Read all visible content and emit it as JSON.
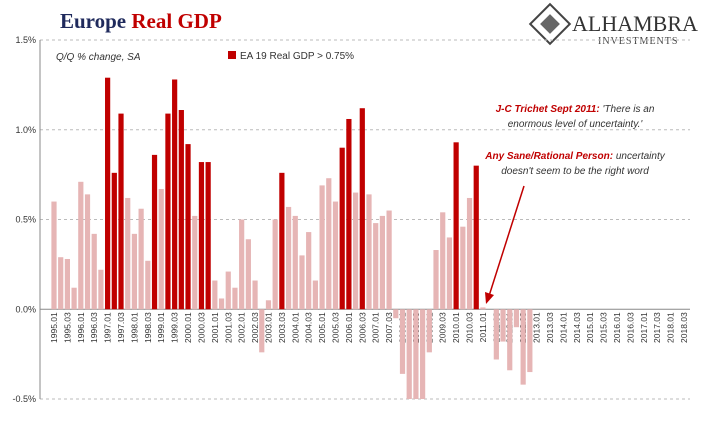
{
  "chart_data": {
    "type": "bar",
    "title": {
      "lead": "Europe",
      "rest": "Real GDP"
    },
    "logo": {
      "name": "ALHAMBRA",
      "tagline": "INVESTMENTS"
    },
    "subtitle": "Q/Q % change, SA",
    "annotations": [
      {
        "speaker": "J-C Trichet Sept 2011:",
        "lines": [
          "'There is an",
          "enormous level of uncertainty.'"
        ]
      },
      {
        "speaker": "Any Sane/Rational Person:",
        "lines": [
          "uncertainty",
          "doesn't seem to be the right word"
        ]
      }
    ],
    "categories": [
      "1995.01",
      null,
      "1995.03",
      null,
      "1996.01",
      null,
      "1996.03",
      null,
      "1997.01",
      null,
      "1997.03",
      null,
      "1998.01",
      null,
      "1998.03",
      null,
      "1999.01",
      null,
      "1999.03",
      null,
      "2000.01",
      null,
      "2000.03",
      null,
      "2001.01",
      null,
      "2001.03",
      null,
      "2002.01",
      null,
      "2002.03",
      null,
      "2003.01",
      null,
      "2003.03",
      null,
      "2004.01",
      null,
      "2004.03",
      null,
      "2005.01",
      null,
      "2005.03",
      null,
      "2006.01",
      null,
      "2006.03",
      null,
      "2007.01",
      null,
      "2007.03",
      null,
      "2008.01",
      null,
      "2008.03",
      null,
      "2009.01",
      null,
      "2009.03",
      null,
      "2010.01",
      null,
      "2010.03",
      null,
      "2011.01",
      null,
      "2011.03",
      null,
      "2012.01",
      null,
      "2012.03",
      null,
      "2013.01",
      null,
      "2013.03",
      null,
      "2014.01",
      null,
      "2014.03",
      null,
      "2015.01",
      null,
      "2015.03",
      null,
      "2016.01",
      null,
      "2016.03",
      null,
      "2017.01",
      null,
      "2017.03",
      null,
      "2018.01",
      null,
      "2018.03"
    ],
    "values": [
      0.6,
      0.29,
      0.28,
      0.12,
      0.71,
      0.64,
      0.42,
      0.22,
      1.29,
      0.76,
      1.09,
      0.62,
      0.42,
      0.56,
      0.27,
      0.86,
      0.67,
      1.09,
      1.28,
      1.11,
      0.92,
      0.52,
      0.82,
      0.82,
      0.16,
      0.06,
      0.21,
      0.12,
      0.5,
      0.39,
      0.16,
      -0.24,
      0.05,
      0.5,
      0.76,
      0.57,
      0.52,
      0.3,
      0.43,
      0.16,
      0.69,
      0.73,
      0.6,
      0.9,
      1.06,
      0.65,
      1.12,
      0.64,
      0.48,
      0.52,
      0.55,
      -0.05,
      -0.36,
      -0.5,
      -0.5,
      -0.5,
      -0.24,
      0.33,
      0.54,
      0.4,
      0.93,
      0.46,
      0.62,
      0.8,
      0.01,
      0.0,
      -0.28,
      -0.18,
      -0.34,
      -0.1,
      -0.42,
      -0.35,
      null,
      null,
      null,
      null,
      null,
      null,
      null,
      null,
      null,
      null,
      null,
      null,
      null,
      null,
      null,
      null,
      null,
      null,
      null,
      null,
      null,
      null,
      null
    ],
    "color": "#e6b5b5",
    "highlight": {
      "name": "EA 19 Real GDP > 0.75%",
      "color": "#c00000",
      "threshold": 0.75
    },
    "ylim": [
      -0.5,
      1.5
    ],
    "yticks": [
      {
        "value": -0.5,
        "label": "-0.5%"
      },
      {
        "value": 0,
        "label": "0.0%"
      },
      {
        "value": 0.5,
        "label": "0.5%"
      },
      {
        "value": 1.0,
        "label": "1.0%"
      },
      {
        "value": 1.5,
        "label": "1.5%"
      }
    ],
    "grid": true
  }
}
